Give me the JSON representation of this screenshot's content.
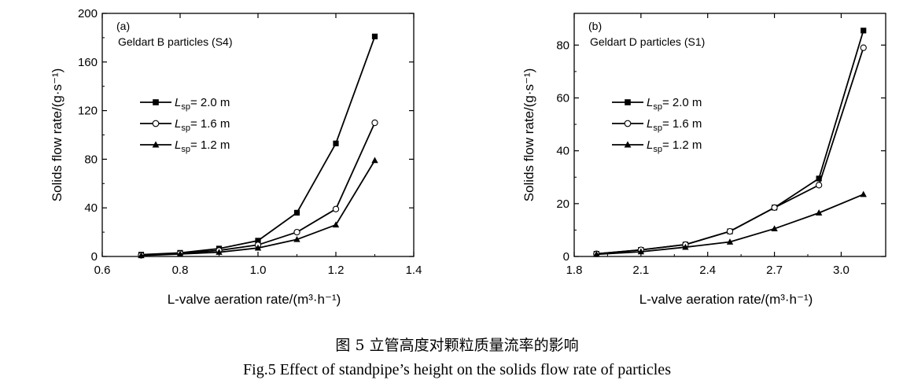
{
  "caption": {
    "cn": "图 5  立管高度对颗粒质量流率的影响",
    "en": "Fig.5  Effect of standpipe’s height on the solids flow rate of particles"
  },
  "chart_data": [
    {
      "type": "line",
      "panel": "(a)",
      "subtitle": "Geldart B particles (S4)",
      "xlabel": "L-valve aeration rate/(m³·h⁻¹)",
      "ylabel": "Solids flow rate/(g·s⁻¹)",
      "xlim": [
        0.6,
        1.4
      ],
      "ylim": [
        0,
        200
      ],
      "xticks": [
        0.6,
        0.8,
        1.0,
        1.2,
        1.4
      ],
      "xtick_labels": [
        "0.6",
        "0.8",
        "1.0",
        "1.2",
        "1.4"
      ],
      "yticks": [
        0,
        40,
        80,
        120,
        160,
        200
      ],
      "ytick_labels": [
        "0",
        "40",
        "80",
        "120",
        "160",
        "200"
      ],
      "legend_position": "middle-left",
      "grid": false,
      "series": [
        {
          "name": "L_sp = 2.0 m",
          "name_parts": [
            "L",
            "sp",
            "= 2.0 m"
          ],
          "marker": "square-filled",
          "x": [
            0.7,
            0.8,
            0.9,
            1.0,
            1.1,
            1.2,
            1.3
          ],
          "y": [
            1.5,
            3.0,
            6.5,
            13,
            36,
            93,
            181
          ]
        },
        {
          "name": "L_sp = 1.6 m",
          "name_parts": [
            "L",
            "sp",
            "= 1.6 m"
          ],
          "marker": "circle-open",
          "x": [
            0.7,
            0.8,
            0.9,
            1.0,
            1.1,
            1.2,
            1.3
          ],
          "y": [
            1.0,
            2.5,
            5.0,
            9.5,
            20,
            39,
            110
          ]
        },
        {
          "name": "L_sp = 1.2 m",
          "name_parts": [
            "L",
            "sp",
            "= 1.2 m"
          ],
          "marker": "triangle-filled",
          "x": [
            0.7,
            0.8,
            0.9,
            1.0,
            1.1,
            1.2,
            1.3
          ],
          "y": [
            0.8,
            2.0,
            3.5,
            7.0,
            14,
            26,
            79
          ]
        }
      ]
    },
    {
      "type": "line",
      "panel": "(b)",
      "subtitle": "Geldart D particles (S1)",
      "xlabel": "L-valve aeration rate/(m³·h⁻¹)",
      "ylabel": "Solids flow rate/(g·s⁻¹)",
      "xlim": [
        1.8,
        3.2
      ],
      "ylim": [
        0,
        92
      ],
      "xticks": [
        1.8,
        2.1,
        2.4,
        2.7,
        3.0
      ],
      "xtick_labels": [
        "1.8",
        "2.1",
        "2.4",
        "2.7",
        "3.0"
      ],
      "yticks": [
        0,
        20,
        40,
        60,
        80
      ],
      "ytick_labels": [
        "0",
        "20",
        "40",
        "60",
        "80"
      ],
      "legend_position": "middle-left",
      "grid": false,
      "series": [
        {
          "name": "L_sp = 2.0 m",
          "name_parts": [
            "L",
            "sp",
            "= 2.0 m"
          ],
          "marker": "square-filled",
          "x": [
            1.9,
            2.1,
            2.3,
            2.5,
            2.7,
            2.9,
            3.1
          ],
          "y": [
            1.0,
            2.5,
            4.5,
            9.5,
            18.5,
            29.5,
            85.5
          ]
        },
        {
          "name": "L_sp = 1.6 m",
          "name_parts": [
            "L",
            "sp",
            "= 1.6 m"
          ],
          "marker": "circle-open",
          "x": [
            1.9,
            2.1,
            2.3,
            2.5,
            2.7,
            2.9,
            3.1
          ],
          "y": [
            1.0,
            2.5,
            4.5,
            9.5,
            18.5,
            27.0,
            79.0
          ]
        },
        {
          "name": "L_sp = 1.2 m",
          "name_parts": [
            "L",
            "sp",
            "= 1.2 m"
          ],
          "marker": "triangle-filled",
          "x": [
            1.9,
            2.1,
            2.3,
            2.5,
            2.7,
            2.9,
            3.1
          ],
          "y": [
            0.8,
            1.8,
            3.5,
            5.5,
            10.5,
            16.5,
            23.5
          ]
        }
      ]
    }
  ]
}
